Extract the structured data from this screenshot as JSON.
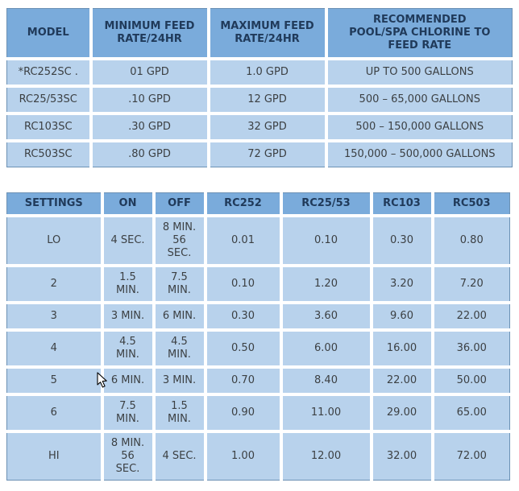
{
  "colors": {
    "header_bg": "#7aabdb",
    "header_text": "#203a5a",
    "cell_bg": "#b8d2ec",
    "cell_text": "#3c4043",
    "grid_gap": "#ffffff",
    "table_border": "#6c91b4"
  },
  "feed_rate_table": {
    "columns": [
      "MODEL",
      "MINIMUM FEED\nRATE/24HR",
      "MAXIMUM FEED\nRATE/24HR",
      "RECOMMENDED\nPOOL/SPA CHLORINE TO\nFEED RATE"
    ],
    "rows": [
      [
        "*RC252SC .",
        "01 GPD",
        "1.0 GPD",
        "UP TO 500 GALLONS"
      ],
      [
        "RC25/53SC",
        ".10 GPD",
        "12 GPD",
        "500 – 65,000 GALLONS"
      ],
      [
        "RC103SC",
        ".30 GPD",
        "32 GPD",
        "500 – 150,000 GALLONS"
      ],
      [
        "RC503SC",
        ".80 GPD",
        "72 GPD",
        "150,000 – 500,000 GALLONS"
      ]
    ]
  },
  "settings_table": {
    "columns": [
      "SETTINGS",
      "ON",
      "OFF",
      "RC252",
      "RC25/53",
      "RC103",
      "RC503"
    ],
    "rows": [
      [
        "LO",
        "4 SEC.",
        "8 MIN.\n56\nSEC.",
        "0.01",
        "0.10",
        "0.30",
        "0.80"
      ],
      [
        "2",
        "1.5\nMIN.",
        "7.5\nMIN.",
        "0.10",
        "1.20",
        "3.20",
        "7.20"
      ],
      [
        "3",
        "3 MIN.",
        "6 MIN.",
        "0.30",
        "3.60",
        "9.60",
        "22.00"
      ],
      [
        "4",
        "4.5\nMIN.",
        "4.5\nMIN.",
        "0.50",
        "6.00",
        "16.00",
        "36.00"
      ],
      [
        "5",
        "6 MIN.",
        "3 MIN.",
        "0.70",
        "8.40",
        "22.00",
        "50.00"
      ],
      [
        "6",
        "7.5\nMIN.",
        "1.5\nMIN.",
        "0.90",
        "11.00",
        "29.00",
        "65.00"
      ],
      [
        "HI",
        "8 MIN.\n56\nSEC.",
        "4 SEC.",
        "1.00",
        "12.00",
        "32.00",
        "72.00"
      ]
    ]
  },
  "cursor": {
    "icon": "arrow-pointer"
  }
}
